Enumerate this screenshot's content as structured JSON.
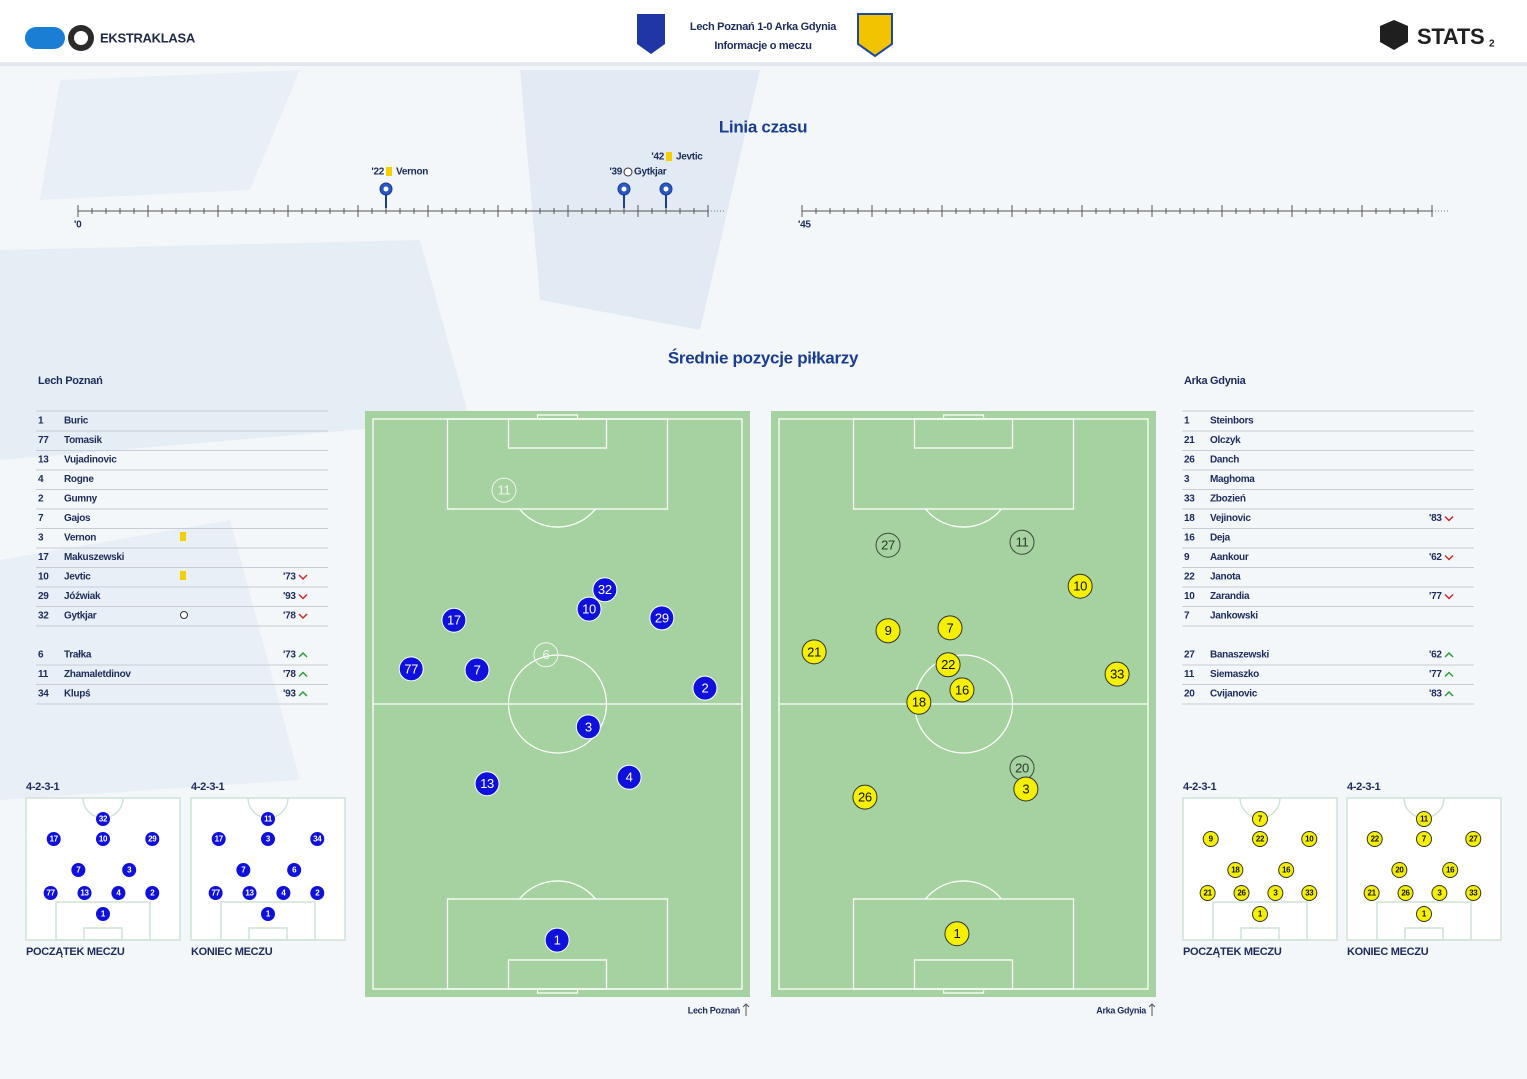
{
  "header": {
    "league": "EKSTRAKLASA",
    "title": "Lech Poznań 1-0 Arka Gdynia",
    "subtitle": "Informacje o meczu",
    "brand": "STATS",
    "page": "2"
  },
  "timeline": {
    "title": "Linia czasu",
    "halves": [
      {
        "label": "'0",
        "start": 0
      },
      {
        "label": "'45",
        "start": 45
      }
    ],
    "events": [
      {
        "minute": 22,
        "minute_label": "'22",
        "type": "card",
        "player": "Vernon"
      },
      {
        "minute": 39,
        "minute_label": "'39",
        "type": "goal",
        "player": "Gytkjar"
      },
      {
        "minute": 42,
        "minute_label": "'42",
        "type": "card",
        "player": "Jevtic"
      }
    ]
  },
  "positions_title": "Średnie pozycje piłkarzy",
  "teams": [
    {
      "name": "Lech Poznań",
      "side": "home",
      "players": [
        {
          "number": "1",
          "name": "Buric"
        },
        {
          "number": "77",
          "name": "Tomasik"
        },
        {
          "number": "13",
          "name": "Vujadinovic"
        },
        {
          "number": "4",
          "name": "Rogne"
        },
        {
          "number": "2",
          "name": "Gumny"
        },
        {
          "number": "7",
          "name": "Gajos"
        },
        {
          "number": "3",
          "name": "Vernon",
          "card": "yellow"
        },
        {
          "number": "17",
          "name": "Makuszewski"
        },
        {
          "number": "10",
          "name": "Jevtic",
          "card": "yellow",
          "sub": "'73",
          "sub_type": "out"
        },
        {
          "number": "29",
          "name": "Jóźwiak",
          "sub": "'93",
          "sub_type": "out"
        },
        {
          "number": "32",
          "name": "Gytkjar",
          "goal": true,
          "sub": "'78",
          "sub_type": "out"
        }
      ],
      "substitutes": [
        {
          "number": "6",
          "name": "Trałka",
          "sub": "'73",
          "sub_type": "in"
        },
        {
          "number": "11",
          "name": "Zhamaletdinov",
          "sub": "'78",
          "sub_type": "in"
        },
        {
          "number": "34",
          "name": "Klupś",
          "sub": "'93",
          "sub_type": "in"
        }
      ],
      "avg_positions": [
        {
          "number": "11",
          "x": 36.1,
          "y": 13.5,
          "substitute": true
        },
        {
          "number": "32",
          "x": 62.3,
          "y": 30.5
        },
        {
          "number": "10",
          "x": 58.2,
          "y": 33.8
        },
        {
          "number": "17",
          "x": 23.1,
          "y": 35.7
        },
        {
          "number": "29",
          "x": 77.1,
          "y": 35.3
        },
        {
          "number": "6",
          "x": 47.0,
          "y": 41.6,
          "substitute": true
        },
        {
          "number": "77",
          "x": 12.0,
          "y": 44.0
        },
        {
          "number": "7",
          "x": 29.1,
          "y": 44.2
        },
        {
          "number": "2",
          "x": 88.3,
          "y": 47.3
        },
        {
          "number": "3",
          "x": 58.0,
          "y": 53.9
        },
        {
          "number": "13",
          "x": 31.7,
          "y": 63.6
        },
        {
          "number": "4",
          "x": 68.6,
          "y": 62.5
        },
        {
          "number": "1",
          "x": 49.9,
          "y": 90.3
        }
      ],
      "formations": [
        {
          "shape": "4-2-3-1",
          "label": "POCZĄTEK MECZU",
          "rows": [
            [
              "32"
            ],
            [
              "17",
              "10",
              "29"
            ],
            [
              "7",
              "3"
            ],
            [
              "77",
              "13",
              "4",
              "2"
            ],
            [
              "1"
            ]
          ]
        },
        {
          "shape": "4-2-3-1",
          "label": "KONIEC MECZU",
          "rows": [
            [
              "11"
            ],
            [
              "17",
              "3",
              "34"
            ],
            [
              "7",
              "6"
            ],
            [
              "77",
              "13",
              "4",
              "2"
            ],
            [
              "1"
            ]
          ]
        }
      ]
    },
    {
      "name": "Arka Gdynia",
      "side": "away",
      "players": [
        {
          "number": "1",
          "name": "Steinbors"
        },
        {
          "number": "21",
          "name": "Olczyk"
        },
        {
          "number": "26",
          "name": "Danch"
        },
        {
          "number": "3",
          "name": "Maghoma"
        },
        {
          "number": "33",
          "name": "Zbozień"
        },
        {
          "number": "18",
          "name": "Vejinovic",
          "sub": "'83",
          "sub_type": "out"
        },
        {
          "number": "16",
          "name": "Deja"
        },
        {
          "number": "9",
          "name": "Aankour",
          "sub": "'62",
          "sub_type": "out"
        },
        {
          "number": "22",
          "name": "Janota"
        },
        {
          "number": "10",
          "name": "Zarandia",
          "sub": "'77",
          "sub_type": "out"
        },
        {
          "number": "7",
          "name": "Jankowski"
        }
      ],
      "substitutes": [
        {
          "number": "27",
          "name": "Banaszewski",
          "sub": "'62",
          "sub_type": "in"
        },
        {
          "number": "11",
          "name": "Siemaszko",
          "sub": "'77",
          "sub_type": "in"
        },
        {
          "number": "20",
          "name": "Cvijanovic",
          "sub": "'83",
          "sub_type": "in"
        }
      ],
      "avg_positions": [
        {
          "number": "27",
          "x": 30.4,
          "y": 22.9,
          "substitute": true
        },
        {
          "number": "11",
          "x": 65.2,
          "y": 22.4,
          "substitute": true
        },
        {
          "number": "10",
          "x": 80.3,
          "y": 29.9
        },
        {
          "number": "9",
          "x": 30.4,
          "y": 37.5
        },
        {
          "number": "7",
          "x": 46.5,
          "y": 37.0
        },
        {
          "number": "21",
          "x": 11.2,
          "y": 41.1
        },
        {
          "number": "22",
          "x": 46.0,
          "y": 43.3
        },
        {
          "number": "16",
          "x": 49.6,
          "y": 47.6
        },
        {
          "number": "18",
          "x": 38.4,
          "y": 49.7
        },
        {
          "number": "33",
          "x": 89.9,
          "y": 44.9
        },
        {
          "number": "20",
          "x": 65.2,
          "y": 60.9,
          "substitute": true
        },
        {
          "number": "3",
          "x": 66.2,
          "y": 64.5
        },
        {
          "number": "26",
          "x": 24.4,
          "y": 65.9
        },
        {
          "number": "1",
          "x": 48.3,
          "y": 89.2
        }
      ],
      "formations": [
        {
          "shape": "4-2-3-1",
          "label": "POCZĄTEK MECZU",
          "rows": [
            [
              "7"
            ],
            [
              "9",
              "22",
              "10"
            ],
            [
              "18",
              "16"
            ],
            [
              "21",
              "26",
              "3",
              "33"
            ],
            [
              "1"
            ]
          ]
        },
        {
          "shape": "4-2-3-1",
          "label": "KONIEC MECZU",
          "rows": [
            [
              "11"
            ],
            [
              "22",
              "7",
              "27"
            ],
            [
              "20",
              "16"
            ],
            [
              "21",
              "26",
              "3",
              "33"
            ],
            [
              "1"
            ]
          ]
        }
      ]
    }
  ]
}
